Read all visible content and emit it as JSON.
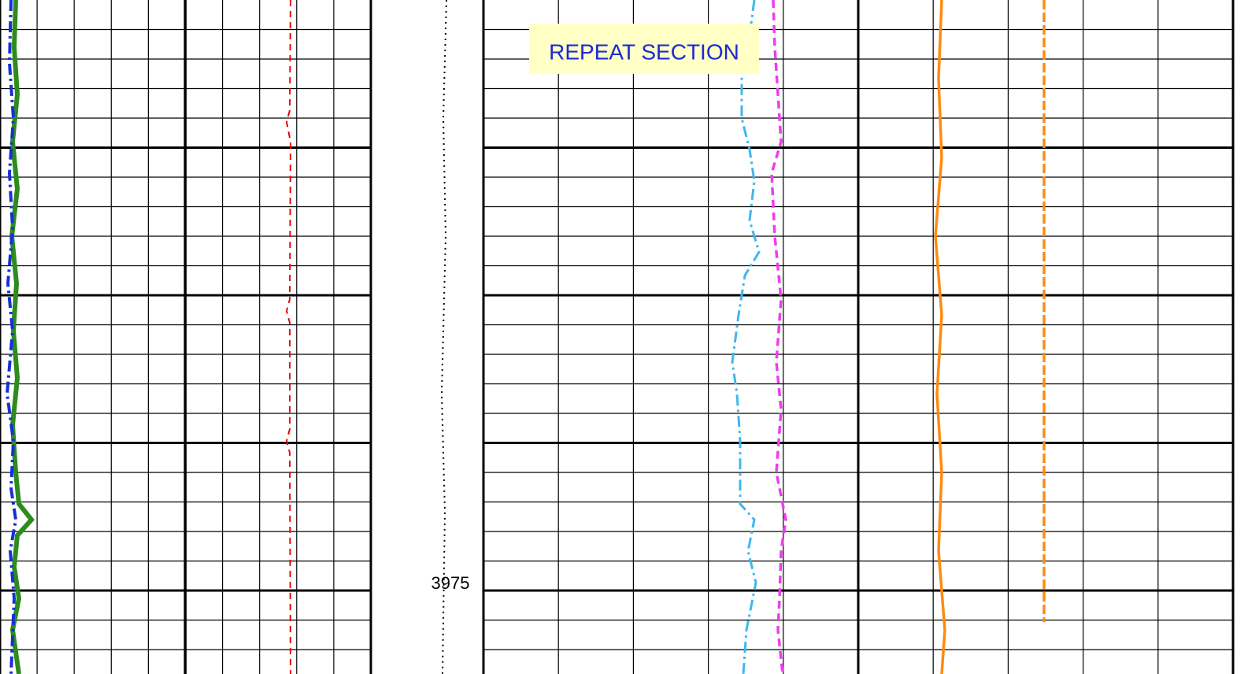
{
  "annotation": "REPEAT SECTION",
  "depth_label": "3975"
}
